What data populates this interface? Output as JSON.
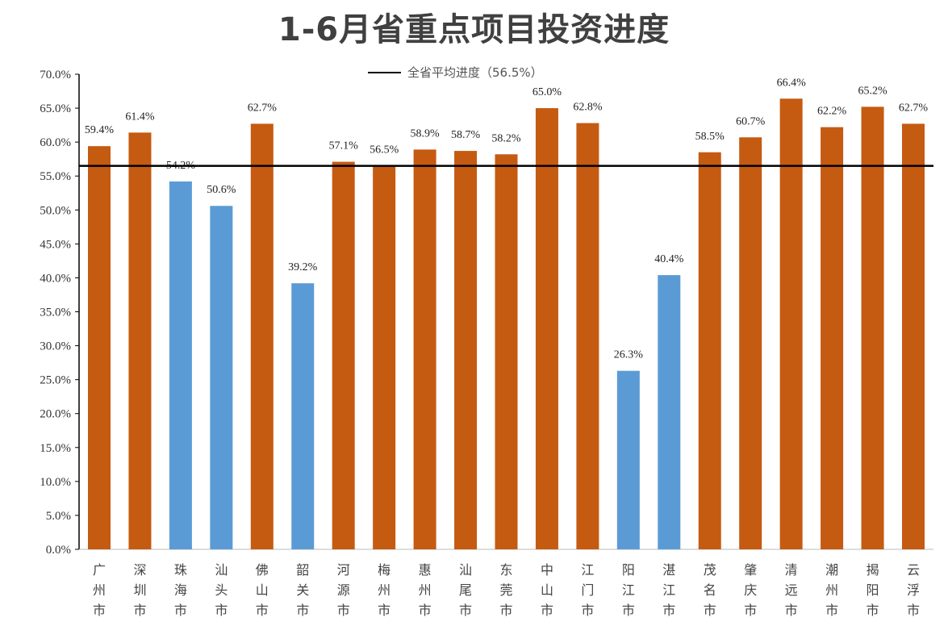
{
  "chart_data": {
    "type": "bar",
    "title": "1-6月省重点项目投资进度",
    "categories": [
      "广州市",
      "深圳市",
      "珠海市",
      "汕头市",
      "佛山市",
      "韶关市",
      "河源市",
      "梅州市",
      "惠州市",
      "汕尾市",
      "东莞市",
      "中山市",
      "江门市",
      "阳江市",
      "湛江市",
      "茂名市",
      "肇庆市",
      "清远市",
      "潮州市",
      "揭阳市",
      "云浮市"
    ],
    "values": [
      59.4,
      61.4,
      54.2,
      50.6,
      62.7,
      39.2,
      57.1,
      56.5,
      58.9,
      58.7,
      58.2,
      65.0,
      62.8,
      26.3,
      40.4,
      58.5,
      60.7,
      66.4,
      62.2,
      65.2,
      62.7
    ],
    "value_labels": [
      "59.4%",
      "61.4%",
      "54.2%",
      "50.6%",
      "62.7%",
      "39.2%",
      "57.1%",
      "56.5%",
      "58.9%",
      "58.7%",
      "58.2%",
      "65.0%",
      "62.8%",
      "26.3%",
      "40.4%",
      "58.5%",
      "60.7%",
      "66.4%",
      "62.2%",
      "65.2%",
      "62.7%"
    ],
    "ylim": [
      0,
      70
    ],
    "yticks": [
      "0.0%",
      "5.0%",
      "10.0%",
      "15.0%",
      "20.0%",
      "25.0%",
      "30.0%",
      "35.0%",
      "40.0%",
      "45.0%",
      "50.0%",
      "55.0%",
      "60.0%",
      "65.0%",
      "70.0%"
    ],
    "reference_line": {
      "label": "全省平均进度（56.5%）",
      "value": 56.5,
      "color": "#000000"
    },
    "colors": {
      "above_average": "#C55A11",
      "below_average": "#5B9BD5"
    },
    "grid": false,
    "legend": "top-center",
    "xlabel": "",
    "ylabel": ""
  }
}
